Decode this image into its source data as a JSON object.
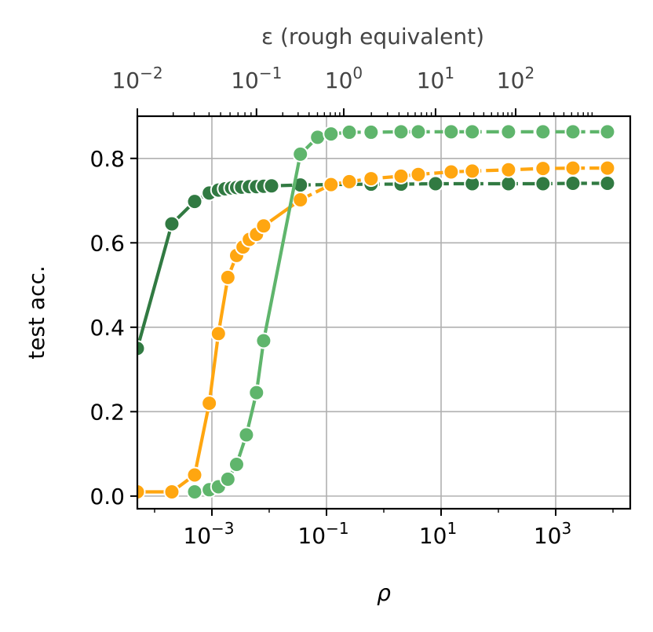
{
  "chart_data": {
    "type": "line",
    "xlabel": "ρ",
    "ylabel": "test acc.",
    "x_scale": "log",
    "xlim": [
      5e-05,
      20000
    ],
    "ylim": [
      -0.03,
      0.9
    ],
    "grid": true,
    "x_ticks": [
      {
        "value": 0.001,
        "base": "10",
        "exp": "−3"
      },
      {
        "value": 0.1,
        "base": "10",
        "exp": "−1"
      },
      {
        "value": 10,
        "base": "10",
        "exp": "1"
      },
      {
        "value": 1000,
        "base": "10",
        "exp": "3"
      }
    ],
    "y_ticks": [
      {
        "value": 0.0,
        "label": "0.0"
      },
      {
        "value": 0.2,
        "label": "0.2"
      },
      {
        "value": 0.4,
        "label": "0.4"
      },
      {
        "value": 0.6,
        "label": "0.6"
      },
      {
        "value": 0.8,
        "label": "0.8"
      }
    ],
    "top_axis": {
      "label": "ε (rough equivalent)",
      "ticks": [
        {
          "rho": 5e-05,
          "base": "10",
          "exp": "−2"
        },
        {
          "rho": 0.006,
          "base": "10",
          "exp": "−1"
        },
        {
          "rho": 0.2,
          "base": "10",
          "exp": "0"
        },
        {
          "rho": 8,
          "base": "10",
          "exp": "1"
        },
        {
          "rho": 200,
          "base": "10",
          "exp": "2"
        }
      ]
    },
    "series": [
      {
        "color": "#317a42",
        "dash": "solid-to-dashed",
        "points": [
          [
            5e-05,
            0.35
          ],
          [
            0.0002,
            0.645
          ],
          [
            0.0005,
            0.698
          ],
          [
            0.0009,
            0.718
          ],
          [
            0.0013,
            0.725
          ],
          [
            0.0017,
            0.728
          ],
          [
            0.0022,
            0.73
          ],
          [
            0.0027,
            0.731
          ],
          [
            0.0033,
            0.732
          ],
          [
            0.0045,
            0.733
          ],
          [
            0.006,
            0.733
          ],
          [
            0.008,
            0.734
          ],
          [
            0.011,
            0.735
          ],
          [
            0.035,
            0.737
          ],
          [
            0.12,
            0.738
          ],
          [
            0.6,
            0.739
          ],
          [
            2,
            0.739
          ],
          [
            8,
            0.74
          ],
          [
            35,
            0.74
          ],
          [
            150,
            0.74
          ],
          [
            600,
            0.74
          ],
          [
            2000,
            0.741
          ],
          [
            8000,
            0.741
          ]
        ]
      },
      {
        "color": "#ffa610",
        "dash": "solid-to-dashed",
        "points": [
          [
            5e-05,
            0.01
          ],
          [
            0.0002,
            0.01
          ],
          [
            0.0005,
            0.05
          ],
          [
            0.0009,
            0.22
          ],
          [
            0.0013,
            0.385
          ],
          [
            0.0019,
            0.518
          ],
          [
            0.0027,
            0.57
          ],
          [
            0.0035,
            0.59
          ],
          [
            0.0045,
            0.608
          ],
          [
            0.006,
            0.62
          ],
          [
            0.008,
            0.64
          ],
          [
            0.035,
            0.702
          ],
          [
            0.12,
            0.738
          ],
          [
            0.25,
            0.745
          ],
          [
            0.6,
            0.752
          ],
          [
            2,
            0.758
          ],
          [
            4,
            0.762
          ],
          [
            15,
            0.768
          ],
          [
            35,
            0.77
          ],
          [
            150,
            0.773
          ],
          [
            600,
            0.776
          ],
          [
            2000,
            0.777
          ],
          [
            8000,
            0.777
          ]
        ]
      },
      {
        "color": "#5fb56c",
        "dash": "solid-to-dashed",
        "points": [
          [
            0.0005,
            0.01
          ],
          [
            0.0009,
            0.015
          ],
          [
            0.0013,
            0.022
          ],
          [
            0.0019,
            0.04
          ],
          [
            0.0027,
            0.075
          ],
          [
            0.004,
            0.145
          ],
          [
            0.006,
            0.245
          ],
          [
            0.008,
            0.368
          ],
          [
            0.035,
            0.81
          ],
          [
            0.07,
            0.85
          ],
          [
            0.12,
            0.858
          ],
          [
            0.25,
            0.862
          ],
          [
            0.6,
            0.862
          ],
          [
            2,
            0.863
          ],
          [
            4,
            0.863
          ],
          [
            15,
            0.863
          ],
          [
            35,
            0.863
          ],
          [
            150,
            0.863
          ],
          [
            600,
            0.863
          ],
          [
            2000,
            0.863
          ],
          [
            8000,
            0.863
          ]
        ]
      }
    ]
  }
}
